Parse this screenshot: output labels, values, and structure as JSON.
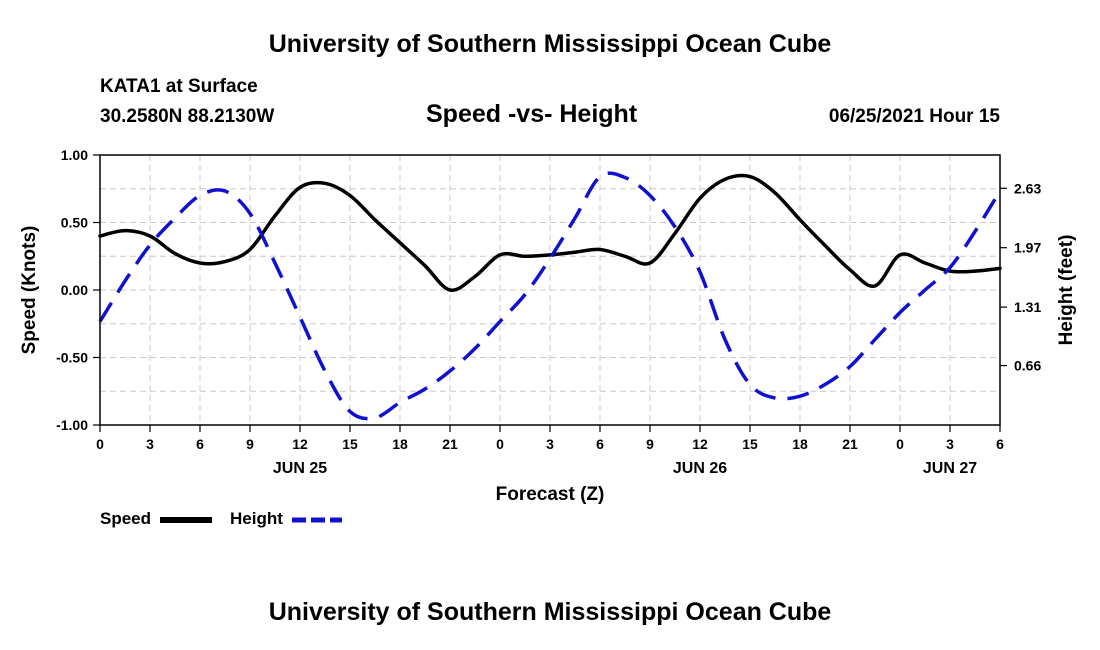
{
  "header": {
    "title": "University of Southern Mississippi Ocean Cube",
    "station": "KATA1 at Surface",
    "coords": "30.2580N  88.2130W",
    "subtitle": "Speed -vs- Height",
    "datetime": "06/25/2021 Hour 15"
  },
  "footer": {
    "title": "University of Southern Mississippi Ocean Cube"
  },
  "legend": {
    "speed_label": "Speed",
    "height_label": "Height"
  },
  "colors": {
    "speed": "#000000",
    "height": "#1010d0",
    "grid": "#c8c8c8"
  },
  "chart_data": {
    "type": "line",
    "title": "Speed -vs- Height",
    "xlabel": "Forecast (Z)",
    "ylabel": "Speed (Knots)",
    "y2label": "Height (feet)",
    "x_range_hours": [
      0,
      54
    ],
    "x_tick_hours": [
      0,
      3,
      6,
      9,
      12,
      15,
      18,
      21,
      24,
      27,
      30,
      33,
      36,
      39,
      42,
      45,
      48,
      51,
      54
    ],
    "x_tick_labels": [
      "0",
      "3",
      "6",
      "9",
      "12",
      "15",
      "18",
      "21",
      "0",
      "3",
      "6",
      "9",
      "12",
      "15",
      "18",
      "21",
      "0",
      "3",
      "6"
    ],
    "day_labels": [
      {
        "hour": 12,
        "label": "JUN 25"
      },
      {
        "hour": 36,
        "label": "JUN 26"
      },
      {
        "hour": 51,
        "label": "JUN 27"
      }
    ],
    "ylim": [
      -1.0,
      1.0
    ],
    "y_ticks": [
      -1.0,
      -0.5,
      0.0,
      0.5,
      1.0
    ],
    "y_tick_labels": [
      "-1.00",
      "-0.50",
      "0.00",
      "0.50",
      "1.00"
    ],
    "y2lim": [
      0.0,
      3.0
    ],
    "y2_ticks": [
      0.66,
      1.31,
      1.97,
      2.63
    ],
    "y2_tick_labels": [
      "0.66",
      "1.31",
      "1.97",
      "2.63"
    ],
    "series": [
      {
        "name": "Speed",
        "axis": "left",
        "style": "solid",
        "x": [
          0,
          1.5,
          3,
          4.5,
          6,
          7.5,
          9,
          10.5,
          12,
          13.5,
          15,
          16.5,
          18,
          19.5,
          21,
          22.5,
          24,
          25.5,
          27,
          28.5,
          30,
          31.5,
          33,
          34.5,
          36,
          37.5,
          39,
          40.5,
          42,
          43.5,
          45,
          46.5,
          48,
          49.5,
          51,
          52.5,
          54
        ],
        "values": [
          0.4,
          0.44,
          0.4,
          0.27,
          0.2,
          0.21,
          0.3,
          0.55,
          0.76,
          0.79,
          0.7,
          0.52,
          0.35,
          0.18,
          0.0,
          0.1,
          0.26,
          0.25,
          0.26,
          0.28,
          0.3,
          0.25,
          0.2,
          0.42,
          0.68,
          0.82,
          0.84,
          0.72,
          0.52,
          0.33,
          0.15,
          0.03,
          0.26,
          0.2,
          0.14,
          0.14,
          0.16
        ]
      },
      {
        "name": "Height",
        "axis": "right",
        "style": "dashed",
        "x": [
          0,
          1.5,
          3,
          4.5,
          6,
          7.5,
          9,
          10.5,
          12,
          13.5,
          15,
          16.5,
          18,
          19.5,
          21,
          22.5,
          24,
          25.5,
          27,
          28.5,
          30,
          31.5,
          33,
          34.5,
          36,
          37.5,
          39,
          40.5,
          42,
          43.5,
          45,
          46.5,
          48,
          49.5,
          51,
          52.5,
          54
        ],
        "values": [
          1.15,
          1.6,
          2.0,
          2.3,
          2.55,
          2.6,
          2.35,
          1.8,
          1.2,
          0.6,
          0.15,
          0.08,
          0.25,
          0.4,
          0.6,
          0.85,
          1.15,
          1.45,
          1.85,
          2.3,
          2.76,
          2.75,
          2.55,
          2.2,
          1.7,
          0.95,
          0.45,
          0.3,
          0.32,
          0.45,
          0.65,
          0.95,
          1.25,
          1.5,
          1.75,
          2.15,
          2.6
        ]
      }
    ]
  }
}
